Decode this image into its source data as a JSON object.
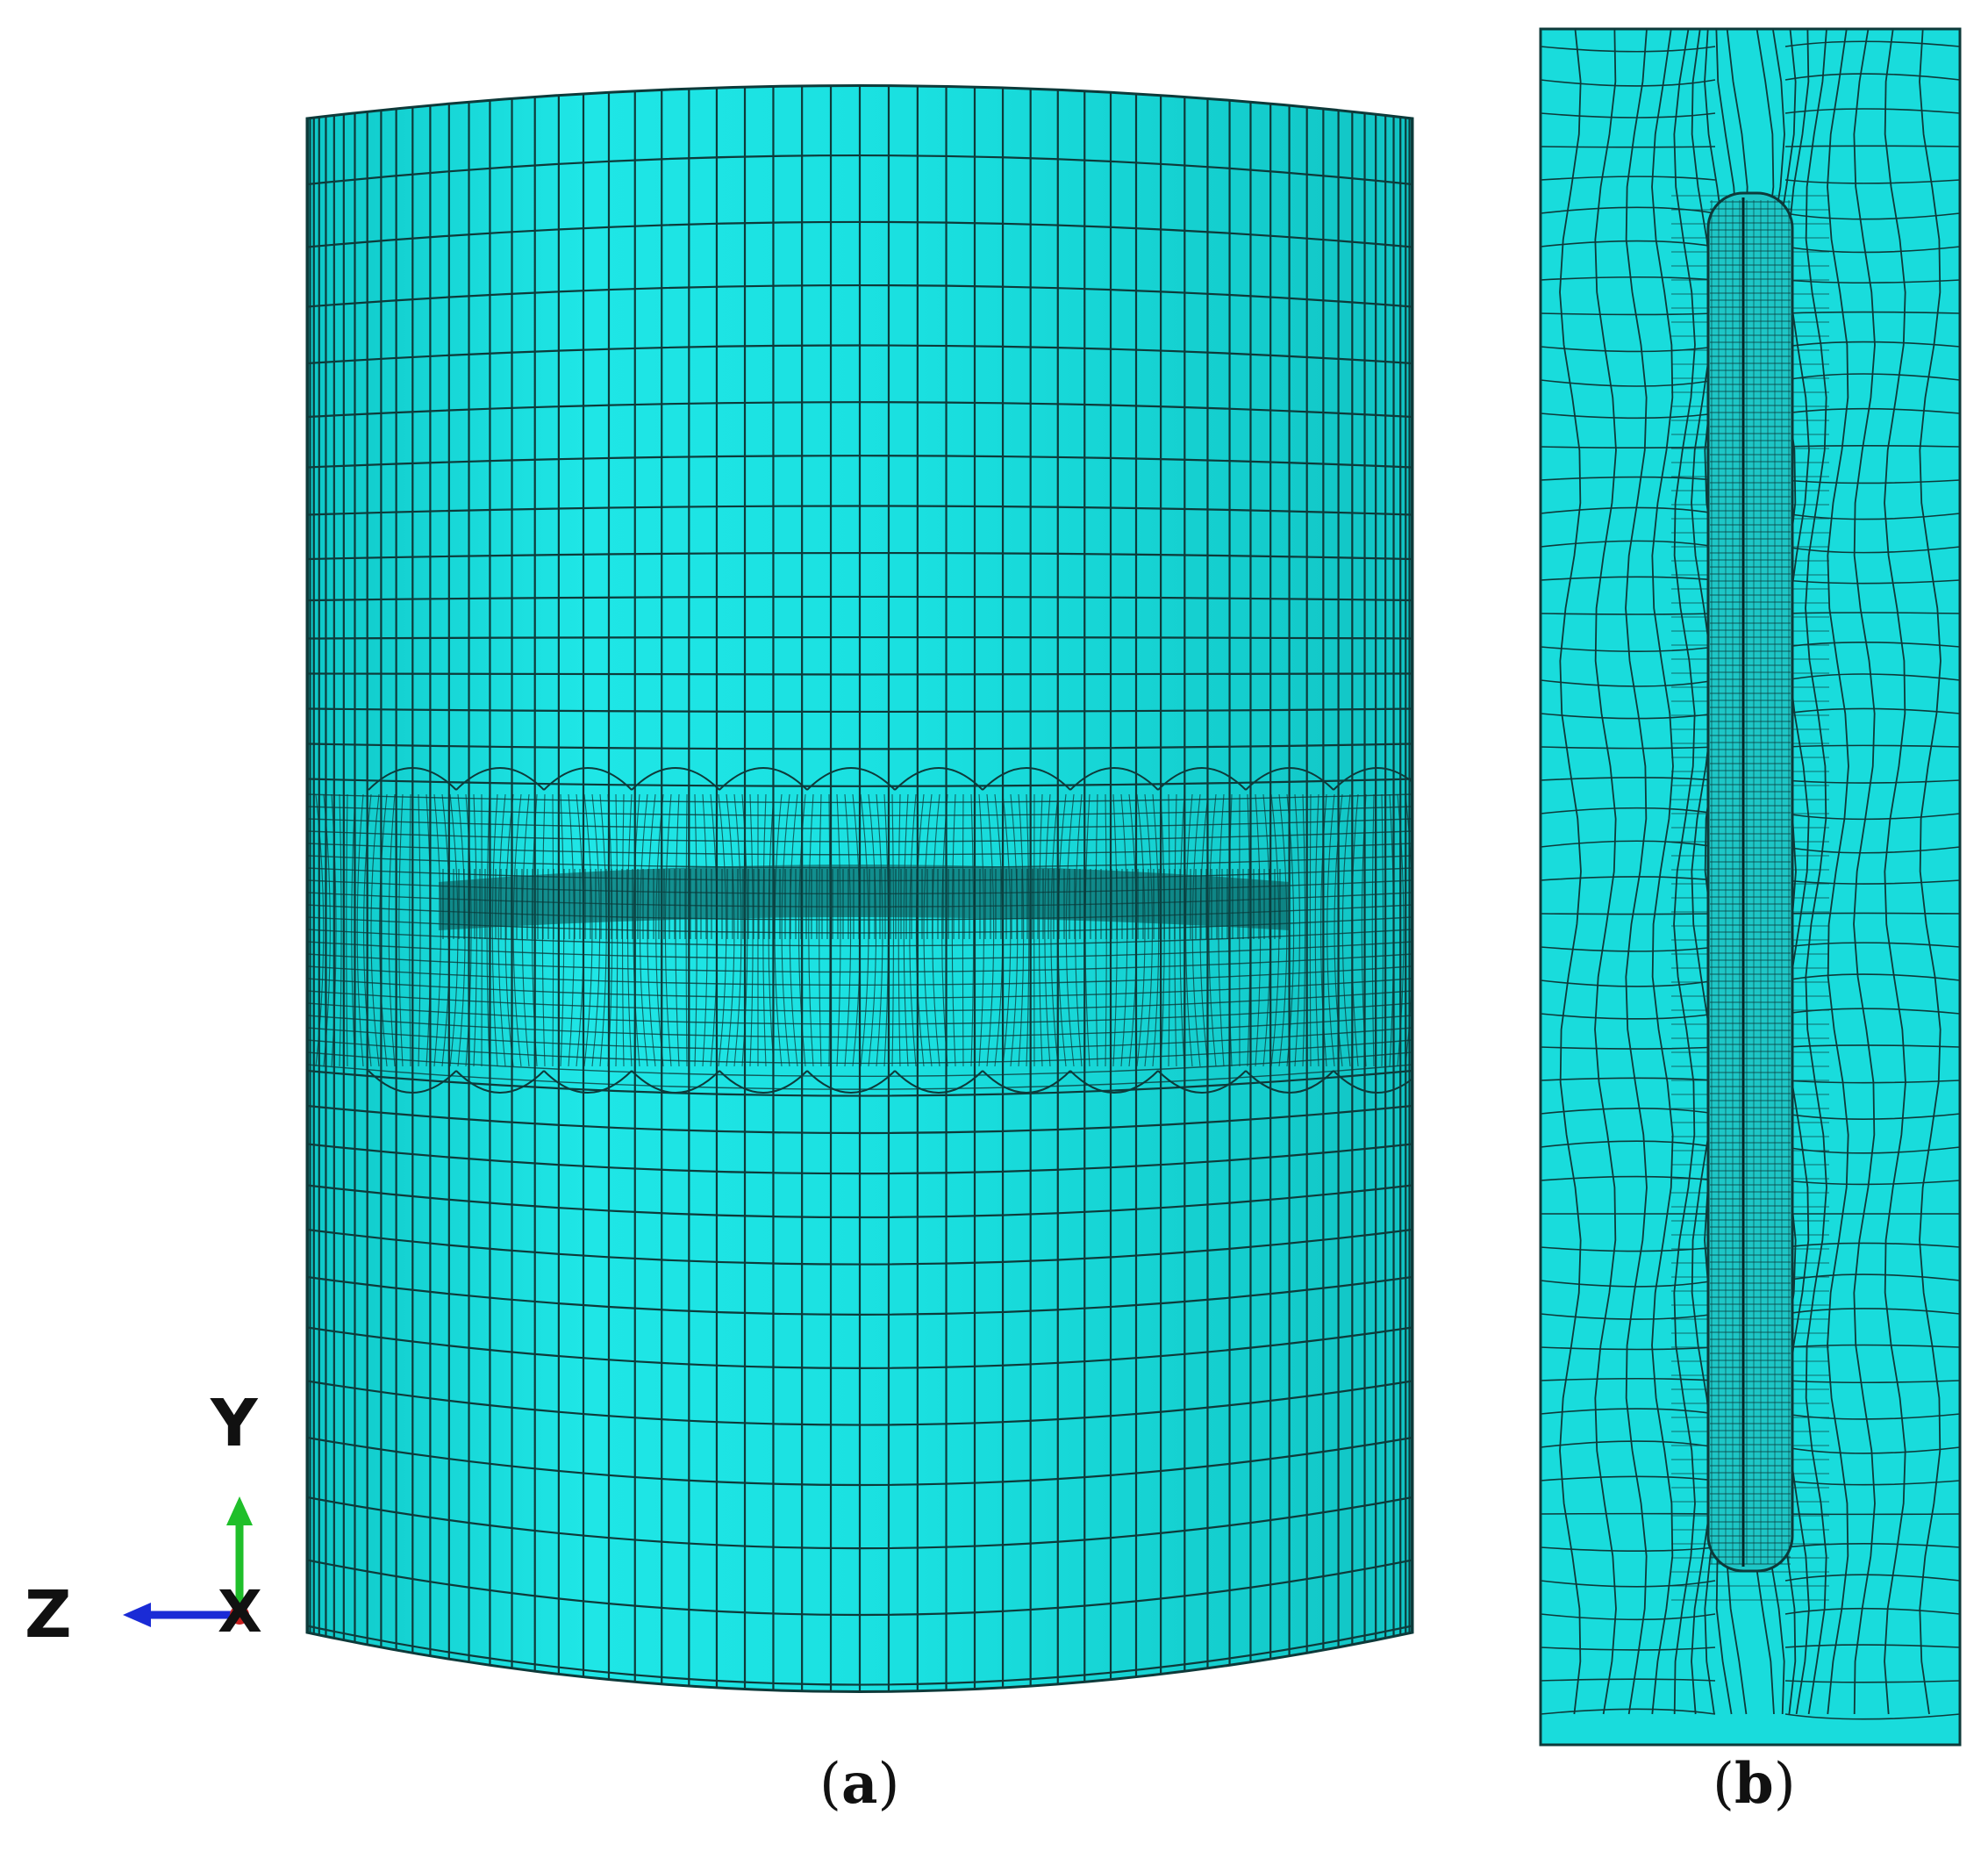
{
  "panel_a": {
    "caption_letter": "a",
    "mesh_color": "#19e1e1",
    "mesh_line_color": "#0d3a3a"
  },
  "panel_b": {
    "caption_letter": "b",
    "mesh_color": "#19e1e1",
    "mesh_line_color": "#0d3a3a"
  },
  "triad": {
    "y_label": "Y",
    "z_label": "Z",
    "x_label": "X",
    "y_color": "#1fbf2a",
    "z_color": "#1a2bd6",
    "x_color": "#c81e1e"
  }
}
